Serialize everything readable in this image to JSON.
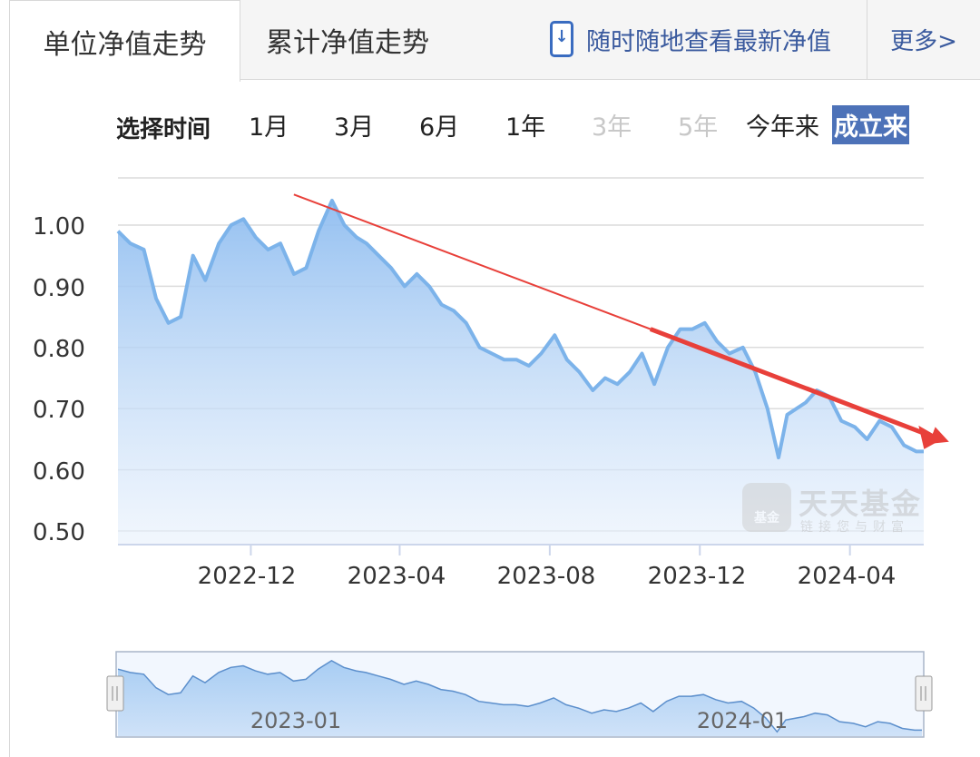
{
  "tabs": [
    {
      "label": "单位净值走势",
      "active": true
    },
    {
      "label": "累计净值走势",
      "active": false
    }
  ],
  "promo": {
    "text": "随时随地查看最新净值",
    "icon": "phone-download-icon"
  },
  "more_link": "更多>",
  "period": {
    "title": "选择时间",
    "options": [
      {
        "label": "1月",
        "state": "normal"
      },
      {
        "label": "3月",
        "state": "normal"
      },
      {
        "label": "6月",
        "state": "normal"
      },
      {
        "label": "1年",
        "state": "normal"
      },
      {
        "label": "3年",
        "state": "disabled"
      },
      {
        "label": "5年",
        "state": "disabled"
      },
      {
        "label": "今年来",
        "state": "normal"
      },
      {
        "label": "成立来",
        "state": "selected"
      }
    ]
  },
  "watermark": {
    "name": "天天基金",
    "slogan": "链接您与财富",
    "logo_text": "基金"
  },
  "navigator": {
    "labels": [
      "2023-01",
      "2024-01"
    ]
  },
  "colors": {
    "line": "#7cb3ea",
    "area": "#a9cbf2",
    "trend": "#e8403a",
    "selected": "#4d72b8",
    "link": "#3a5a9e"
  },
  "chart_data": {
    "type": "area",
    "x_ticks": [
      "2022-12",
      "2023-04",
      "2023-08",
      "2023-12",
      "2024-04"
    ],
    "y_ticks": [
      "0.50",
      "0.60",
      "0.70",
      "0.80",
      "0.90",
      "1.00"
    ],
    "ylim": [
      0.5,
      1.1
    ],
    "grid": true,
    "x_start": "2022-08-15",
    "x_end": "2024-05-31",
    "series": [
      {
        "points": [
          [
            "2022-08-15",
            0.99
          ],
          [
            "2022-08-25",
            0.97
          ],
          [
            "2022-09-05",
            0.96
          ],
          [
            "2022-09-15",
            0.88
          ],
          [
            "2022-09-25",
            0.84
          ],
          [
            "2022-10-05",
            0.85
          ],
          [
            "2022-10-15",
            0.95
          ],
          [
            "2022-10-25",
            0.91
          ],
          [
            "2022-11-05",
            0.97
          ],
          [
            "2022-11-15",
            1.0
          ],
          [
            "2022-11-25",
            1.01
          ],
          [
            "2022-12-05",
            0.98
          ],
          [
            "2022-12-15",
            0.96
          ],
          [
            "2022-12-25",
            0.97
          ],
          [
            "2023-01-05",
            0.92
          ],
          [
            "2023-01-15",
            0.93
          ],
          [
            "2023-01-25",
            0.99
          ],
          [
            "2023-02-05",
            1.04
          ],
          [
            "2023-02-15",
            1.0
          ],
          [
            "2023-02-25",
            0.98
          ],
          [
            "2023-03-05",
            0.97
          ],
          [
            "2023-03-15",
            0.95
          ],
          [
            "2023-03-25",
            0.93
          ],
          [
            "2023-04-05",
            0.9
          ],
          [
            "2023-04-15",
            0.92
          ],
          [
            "2023-04-25",
            0.9
          ],
          [
            "2023-05-05",
            0.87
          ],
          [
            "2023-05-15",
            0.86
          ],
          [
            "2023-05-25",
            0.84
          ],
          [
            "2023-06-05",
            0.8
          ],
          [
            "2023-06-15",
            0.79
          ],
          [
            "2023-06-25",
            0.78
          ],
          [
            "2023-07-05",
            0.78
          ],
          [
            "2023-07-15",
            0.77
          ],
          [
            "2023-07-25",
            0.79
          ],
          [
            "2023-08-05",
            0.82
          ],
          [
            "2023-08-15",
            0.78
          ],
          [
            "2023-08-25",
            0.76
          ],
          [
            "2023-09-05",
            0.73
          ],
          [
            "2023-09-15",
            0.75
          ],
          [
            "2023-09-25",
            0.74
          ],
          [
            "2023-10-05",
            0.76
          ],
          [
            "2023-10-15",
            0.79
          ],
          [
            "2023-10-25",
            0.74
          ],
          [
            "2023-11-05",
            0.8
          ],
          [
            "2023-11-15",
            0.83
          ],
          [
            "2023-11-25",
            0.83
          ],
          [
            "2023-12-05",
            0.84
          ],
          [
            "2023-12-15",
            0.81
          ],
          [
            "2023-12-25",
            0.79
          ],
          [
            "2024-01-05",
            0.8
          ],
          [
            "2024-01-15",
            0.76
          ],
          [
            "2024-01-25",
            0.7
          ],
          [
            "2024-02-03",
            0.62
          ],
          [
            "2024-02-10",
            0.69
          ],
          [
            "2024-02-25",
            0.71
          ],
          [
            "2024-03-05",
            0.73
          ],
          [
            "2024-03-15",
            0.72
          ],
          [
            "2024-03-25",
            0.68
          ],
          [
            "2024-04-05",
            0.67
          ],
          [
            "2024-04-15",
            0.65
          ],
          [
            "2024-04-25",
            0.68
          ],
          [
            "2024-05-05",
            0.67
          ],
          [
            "2024-05-15",
            0.64
          ],
          [
            "2024-05-25",
            0.63
          ],
          [
            "2024-05-31",
            0.63
          ]
        ]
      }
    ],
    "annotation": {
      "type": "trend-arrow",
      "start": [
        "2023-01-05",
        1.05
      ],
      "end": [
        "2024-06-15",
        0.65
      ]
    }
  }
}
